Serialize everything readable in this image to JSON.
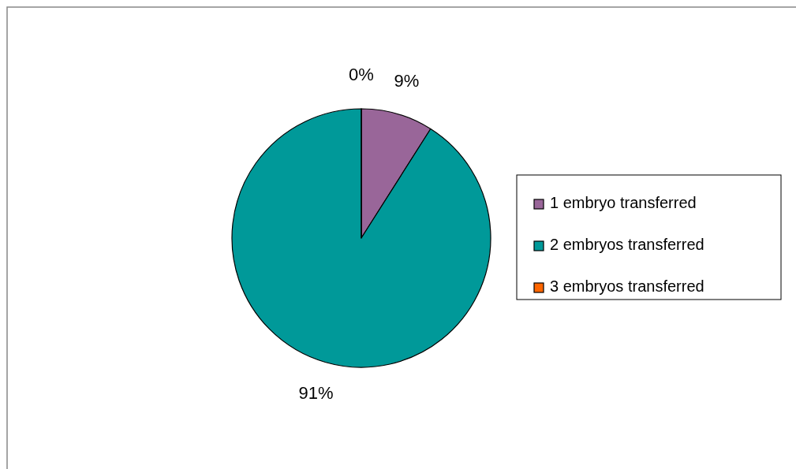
{
  "chart_data": {
    "type": "pie",
    "categories": [
      "1 embryo transferred",
      "2 embryos transferred",
      "3 embryos transferred"
    ],
    "values": [
      9,
      91,
      0
    ],
    "colors": [
      "#996699",
      "#009999",
      "#ff6600"
    ],
    "value_labels": [
      "9%",
      "91%",
      "0%"
    ],
    "legend": "right"
  }
}
